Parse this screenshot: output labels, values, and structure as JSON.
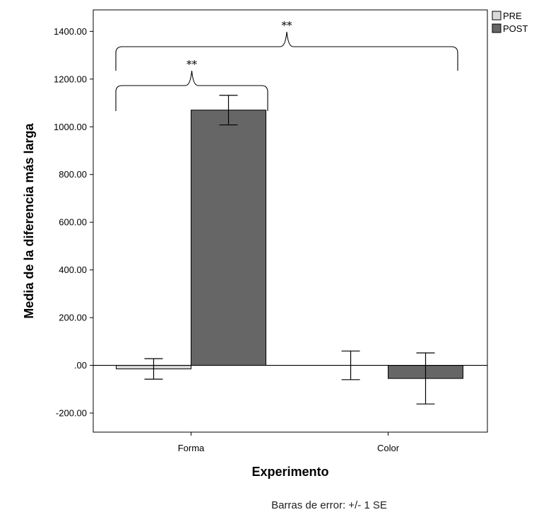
{
  "chart_data": {
    "type": "bar",
    "title": "",
    "xlabel": "Experimento",
    "ylabel": "Media de la diferencia más larga",
    "categories": [
      "Forma",
      "Color"
    ],
    "series": [
      {
        "name": "PRE",
        "color": "#d9d9d9",
        "values": [
          -15,
          0
        ],
        "error": [
          43,
          60
        ]
      },
      {
        "name": "POST",
        "color": "#666666",
        "values": [
          1070,
          -55
        ],
        "error": [
          62,
          107
        ]
      }
    ],
    "ylim": [
      -280,
      1490
    ],
    "yticks": [
      -200,
      0,
      200,
      400,
      600,
      800,
      1000,
      1200,
      1400
    ],
    "ytick_labels": [
      "-200.00",
      ".00",
      "200.00",
      "400.00",
      "600.00",
      "800.00",
      "1000.00",
      "1200.00",
      "1400.00"
    ],
    "legend_position": "outside-top-right",
    "grid": false,
    "footnote": "Barras de error: +/- 1 SE",
    "annotations": [
      {
        "text": "**",
        "spans": "Forma PRE to Forma POST"
      },
      {
        "text": "**",
        "spans": "Forma PRE to Color POST"
      }
    ]
  }
}
